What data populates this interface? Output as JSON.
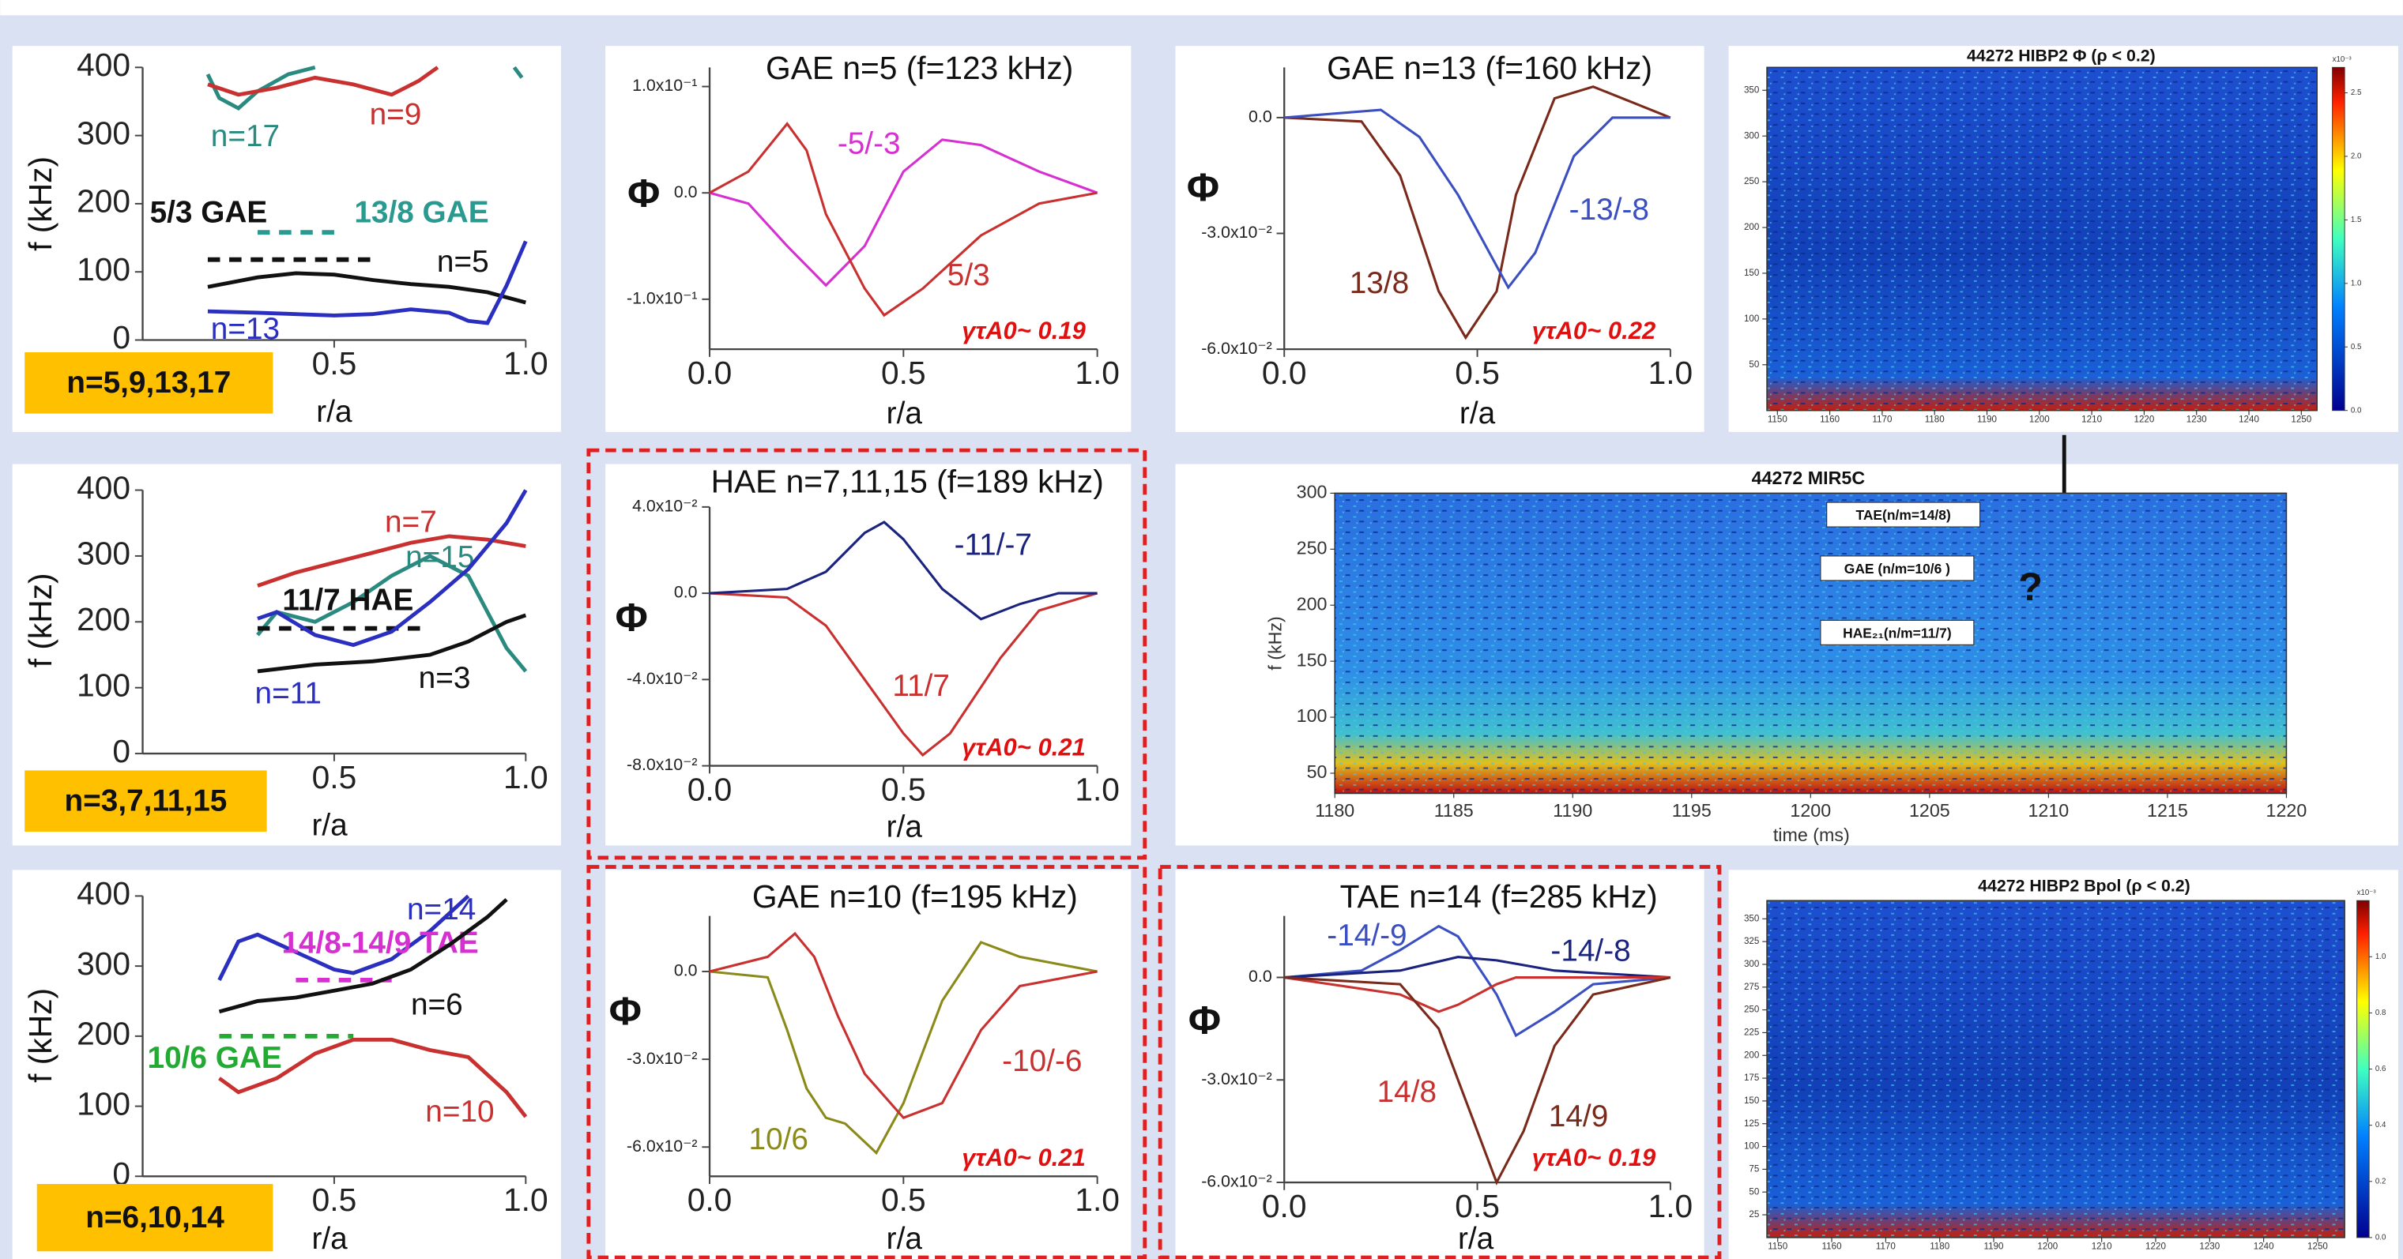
{
  "chart_data": [
    {
      "type": "line",
      "xlabel": "r/a",
      "ylabel": "f (kHz)",
      "annotation": "n=5,9,13,17",
      "xlim": [
        0,
        1
      ],
      "xticks": [
        0.5,
        {
          "value": 1,
          "label": "1.0"
        }
      ],
      "ylim": [
        0,
        400
      ],
      "yticks": [
        0,
        100,
        200,
        300,
        400
      ],
      "series": [
        {
          "name": "n=17",
          "color": "#2a8a80",
          "x": [
            0.17,
            0.2,
            0.25,
            0.3,
            0.38,
            0.45,
            0.5,
            0.97,
            0.99
          ],
          "values": [
            390,
            355,
            340,
            365,
            390,
            400,
            null,
            400,
            385
          ]
        },
        {
          "name": "n=9",
          "color": "#c8312f",
          "x": [
            0.17,
            0.25,
            0.35,
            0.45,
            0.55,
            0.65,
            0.72,
            0.77
          ],
          "values": [
            375,
            360,
            370,
            385,
            375,
            360,
            380,
            400
          ]
        },
        {
          "name": "n=5",
          "color": "#111111",
          "x": [
            0.17,
            0.3,
            0.4,
            0.5,
            0.6,
            0.7,
            0.8,
            0.9,
            1.0
          ],
          "values": [
            78,
            92,
            98,
            96,
            88,
            82,
            78,
            70,
            55
          ]
        },
        {
          "name": "n=13",
          "color": "#2b2fbf",
          "x": [
            0.17,
            0.3,
            0.4,
            0.5,
            0.6,
            0.7,
            0.8,
            0.85,
            0.9,
            0.95,
            1.0
          ],
          "values": [
            42,
            40,
            38,
            36,
            38,
            45,
            40,
            28,
            25,
            80,
            145
          ]
        },
        {
          "name": "5/3 GAE",
          "color": "#111111",
          "dashed": true,
          "x": [
            0.17,
            0.6
          ],
          "values": [
            118,
            118
          ]
        },
        {
          "name": "13/8 GAE",
          "color": "#2a9a90",
          "dashed": true,
          "x": [
            0.3,
            0.52
          ],
          "values": [
            158,
            158
          ]
        }
      ]
    },
    {
      "type": "line",
      "title": "GAE n=5 (f=123 kHz)",
      "xlabel": "r/a",
      "ylabel": "Φ",
      "growth_rate": "γτA0~ 0.19",
      "xlim": [
        0,
        1
      ],
      "xticks": [
        {
          "value": 0,
          "label": "0.0"
        },
        0.5,
        {
          "value": 1,
          "label": "1.0"
        }
      ],
      "ylim": [
        -0.147,
        0.118
      ],
      "yticks": [
        {
          "value": 0.1,
          "label": "1.0x10⁻¹"
        },
        {
          "value": 0,
          "label": "0.0"
        },
        {
          "value": -0.1,
          "label": "-1.0x10⁻¹"
        }
      ],
      "series": [
        {
          "name": "-5/-3",
          "color": "#d630d0",
          "x": [
            0,
            0.1,
            0.2,
            0.3,
            0.4,
            0.5,
            0.6,
            0.7,
            0.85,
            1
          ],
          "values": [
            0,
            -0.01,
            -0.05,
            -0.087,
            -0.05,
            0.02,
            0.05,
            0.045,
            0.02,
            0
          ]
        },
        {
          "name": "5/3",
          "color": "#c8312f",
          "x": [
            0,
            0.1,
            0.2,
            0.25,
            0.3,
            0.4,
            0.45,
            0.55,
            0.7,
            0.85,
            1
          ],
          "values": [
            0,
            0.02,
            0.065,
            0.04,
            -0.02,
            -0.09,
            -0.115,
            -0.09,
            -0.04,
            -0.01,
            0
          ]
        }
      ]
    },
    {
      "type": "line",
      "title": "GAE n=13 (f=160 kHz)",
      "xlabel": "r/a",
      "ylabel": "Φ",
      "growth_rate": "γτA0~ 0.22",
      "xlim": [
        0,
        1
      ],
      "xticks": [
        {
          "value": 0,
          "label": "0.0"
        },
        0.5,
        {
          "value": 1,
          "label": "1.0"
        }
      ],
      "ylim": [
        -0.06,
        0.013
      ],
      "yticks": [
        {
          "value": 0,
          "label": "0.0"
        },
        {
          "value": -0.03,
          "label": "-3.0x10⁻²"
        },
        {
          "value": -0.06,
          "label": "-6.0x10⁻²"
        }
      ],
      "series": [
        {
          "name": "13/8",
          "color": "#7a2a1a",
          "x": [
            0,
            0.2,
            0.3,
            0.4,
            0.47,
            0.55,
            0.6,
            0.7,
            0.8,
            0.9,
            1
          ],
          "values": [
            0,
            -0.001,
            -0.015,
            -0.045,
            -0.057,
            -0.045,
            -0.02,
            0.005,
            0.008,
            0.004,
            0
          ]
        },
        {
          "name": "-13/-8",
          "color": "#3b4fc0",
          "x": [
            0,
            0.25,
            0.35,
            0.45,
            0.58,
            0.65,
            0.75,
            0.85,
            1
          ],
          "values": [
            0,
            0.002,
            -0.005,
            -0.02,
            -0.044,
            -0.035,
            -0.01,
            0,
            0
          ]
        }
      ]
    },
    {
      "type": "heatmap",
      "title": "44272 HIBP2 Φ (ρ < 0.2)",
      "colorbar_label": "x10⁻³",
      "xlim": [
        1148,
        1253
      ],
      "xticks": [
        1150,
        1160,
        1170,
        1180,
        1190,
        1200,
        1210,
        1220,
        1230,
        1240,
        1250
      ],
      "ylim": [
        0,
        375
      ],
      "yticks": [
        50,
        100,
        150,
        200,
        250,
        300,
        350
      ],
      "clim": [
        0,
        2.7
      ],
      "cticks": [
        {
          "value": 0,
          "label": "0.0"
        },
        0.5,
        {
          "value": 1,
          "label": "1.0"
        },
        1.5,
        {
          "value": 2,
          "label": "2.0"
        },
        2.5
      ]
    },
    {
      "type": "line",
      "xlabel": "r/a",
      "ylabel": "f (kHz)",
      "annotation": "n=3,7,11,15",
      "xlim": [
        0,
        1
      ],
      "xticks": [
        0.5,
        {
          "value": 1,
          "label": "1.0"
        }
      ],
      "ylim": [
        0,
        400
      ],
      "yticks": [
        0,
        100,
        200,
        300,
        400
      ],
      "series": [
        {
          "name": "n=7",
          "color": "#c8312f",
          "x": [
            0.3,
            0.4,
            0.5,
            0.6,
            0.7,
            0.8,
            0.9,
            1.0
          ],
          "values": [
            255,
            275,
            290,
            305,
            320,
            330,
            325,
            315
          ]
        },
        {
          "name": "n=15",
          "color": "#2a8a80",
          "x": [
            0.3,
            0.35,
            0.45,
            0.55,
            0.65,
            0.75,
            0.85,
            0.95,
            1.0
          ],
          "values": [
            180,
            215,
            200,
            230,
            270,
            300,
            270,
            160,
            125
          ]
        },
        {
          "name": "11/7 HAE",
          "color": "#111111",
          "dashed": true,
          "x": [
            0.3,
            0.73
          ],
          "values": [
            190,
            190
          ]
        },
        {
          "name": "n=11",
          "color": "#2b2fbf",
          "x": [
            0.3,
            0.35,
            0.45,
            0.55,
            0.65,
            0.75,
            0.85,
            0.95,
            1.0
          ],
          "values": [
            205,
            215,
            180,
            165,
            185,
            230,
            280,
            350,
            400
          ]
        },
        {
          "name": "n=3",
          "color": "#111111",
          "x": [
            0.3,
            0.45,
            0.6,
            0.75,
            0.85,
            0.95,
            1.0
          ],
          "values": [
            125,
            135,
            140,
            150,
            170,
            200,
            210
          ]
        }
      ]
    },
    {
      "type": "line",
      "title": "HAE n=7,11,15 (f=189 kHz)",
      "xlabel": "r/a",
      "ylabel": "Φ",
      "growth_rate": "γτA0~ 0.21",
      "xlim": [
        0,
        1
      ],
      "xticks": [
        {
          "value": 0,
          "label": "0.0"
        },
        0.5,
        {
          "value": 1,
          "label": "1.0"
        }
      ],
      "ylim": [
        -0.08,
        0.04
      ],
      "yticks": [
        {
          "value": 0.04,
          "label": "4.0x10⁻²"
        },
        {
          "value": 0,
          "label": "0.0"
        },
        {
          "value": -0.04,
          "label": "-4.0x10⁻²"
        },
        {
          "value": -0.08,
          "label": "-8.0x10⁻²"
        }
      ],
      "series": [
        {
          "name": "11/7",
          "color": "#c8312f",
          "x": [
            0,
            0.2,
            0.3,
            0.4,
            0.5,
            0.55,
            0.62,
            0.75,
            0.85,
            1
          ],
          "values": [
            0,
            -0.002,
            -0.015,
            -0.04,
            -0.065,
            -0.075,
            -0.065,
            -0.03,
            -0.008,
            0
          ]
        },
        {
          "name": "-11/-7",
          "color": "#1a237e",
          "x": [
            0,
            0.2,
            0.3,
            0.4,
            0.45,
            0.5,
            0.6,
            0.7,
            0.8,
            0.9,
            1
          ],
          "values": [
            0,
            0.002,
            0.01,
            0.028,
            0.033,
            0.025,
            0.002,
            -0.012,
            -0.005,
            0,
            0
          ]
        }
      ]
    },
    {
      "type": "heatmap",
      "title": "44272 MIR5C",
      "xlabel": "time (ms)",
      "ylabel": "f (kHz)",
      "xlim": [
        1180,
        1220
      ],
      "xticks": [
        1180,
        1185,
        1190,
        1195,
        1200,
        1205,
        1210,
        1215,
        1220
      ],
      "ylim": [
        32,
        300
      ],
      "yticks": [
        50,
        100,
        150,
        200,
        250,
        300
      ],
      "annotations": [
        "TAE(n/m=14/8)",
        "GAE (n/m=10/6 )",
        "HAE₂₁(n/m=11/7)",
        "?"
      ]
    },
    {
      "type": "line",
      "xlabel": "r/a",
      "ylabel": "f (kHz)",
      "annotation": "n=6,10,14",
      "xlim": [
        0,
        1
      ],
      "xticks": [
        0.5,
        {
          "value": 1,
          "label": "1.0"
        }
      ],
      "ylim": [
        0,
        400
      ],
      "yticks": [
        0,
        100,
        200,
        300,
        400
      ],
      "series": [
        {
          "name": "n=14",
          "color": "#2b2fbf",
          "x": [
            0.2,
            0.25,
            0.3,
            0.4,
            0.5,
            0.55,
            0.65,
            0.75,
            0.85
          ],
          "values": [
            280,
            335,
            345,
            320,
            295,
            290,
            310,
            350,
            400
          ]
        },
        {
          "name": "14/8-14/9 TAE",
          "color": "#d630d0",
          "dashed": true,
          "x": [
            0.4,
            0.65
          ],
          "values": [
            280,
            280
          ]
        },
        {
          "name": "n=6",
          "color": "#111111",
          "x": [
            0.2,
            0.3,
            0.4,
            0.5,
            0.6,
            0.7,
            0.8,
            0.9,
            0.95
          ],
          "values": [
            235,
            250,
            255,
            265,
            275,
            295,
            330,
            370,
            395
          ]
        },
        {
          "name": "10/6 GAE",
          "color": "#22aa33",
          "dashed": true,
          "x": [
            0.2,
            0.55
          ],
          "values": [
            200,
            200
          ]
        },
        {
          "name": "n=10",
          "color": "#c8312f",
          "x": [
            0.2,
            0.25,
            0.35,
            0.45,
            0.55,
            0.65,
            0.75,
            0.85,
            0.95,
            1.0
          ],
          "values": [
            140,
            120,
            140,
            175,
            195,
            195,
            180,
            170,
            120,
            85
          ]
        }
      ]
    },
    {
      "type": "line",
      "title": "GAE n=10 (f=195 kHz)",
      "xlabel": "r/a",
      "ylabel": "Φ",
      "growth_rate": "γτA0~ 0.21",
      "xlim": [
        0,
        1
      ],
      "xticks": [
        {
          "value": 0,
          "label": "0.0"
        },
        0.5,
        {
          "value": 1,
          "label": "1.0"
        }
      ],
      "ylim": [
        -0.07,
        0.019
      ],
      "yticks": [
        {
          "value": 0,
          "label": "0.0"
        },
        {
          "value": -0.03,
          "label": "-3.0x10⁻²"
        },
        {
          "value": -0.06,
          "label": "-6.0x10⁻²"
        }
      ],
      "series": [
        {
          "name": "10/6",
          "color": "#8a8a1a",
          "x": [
            0,
            0.15,
            0.2,
            0.25,
            0.3,
            0.35,
            0.43,
            0.5,
            0.6,
            0.7,
            0.8,
            1
          ],
          "values": [
            0,
            -0.002,
            -0.02,
            -0.04,
            -0.05,
            -0.052,
            -0.062,
            -0.045,
            -0.01,
            0.01,
            0.005,
            0
          ]
        },
        {
          "name": "-10/-6",
          "color": "#c8312f",
          "x": [
            0,
            0.15,
            0.22,
            0.27,
            0.33,
            0.4,
            0.5,
            0.6,
            0.7,
            0.8,
            1
          ],
          "values": [
            0,
            0.005,
            0.013,
            0.005,
            -0.015,
            -0.035,
            -0.05,
            -0.045,
            -0.02,
            -0.005,
            0
          ]
        }
      ]
    },
    {
      "type": "line",
      "title": "TAE n=14 (f=285 kHz)",
      "xlabel": "r/a",
      "ylabel": "Φ",
      "growth_rate": "γτA0~ 0.19",
      "xlim": [
        0,
        1
      ],
      "xticks": [
        {
          "value": 0,
          "label": "0.0"
        },
        0.5,
        {
          "value": 1,
          "label": "1.0"
        }
      ],
      "ylim": [
        -0.06,
        0.018
      ],
      "yticks": [
        {
          "value": 0,
          "label": "0.0"
        },
        {
          "value": -0.03,
          "label": "-3.0x10⁻²"
        },
        {
          "value": -0.06,
          "label": "-6.0x10⁻²"
        }
      ],
      "series": [
        {
          "name": "-14/-9",
          "color": "#3b4fc0",
          "x": [
            0,
            0.2,
            0.3,
            0.4,
            0.45,
            0.55,
            0.6,
            0.7,
            0.8,
            1
          ],
          "values": [
            0,
            0.002,
            0.008,
            0.015,
            0.012,
            -0.005,
            -0.017,
            -0.01,
            -0.002,
            0
          ]
        },
        {
          "name": "-14/-8",
          "color": "#1a237e",
          "x": [
            0,
            0.3,
            0.45,
            0.55,
            0.7,
            1
          ],
          "values": [
            0,
            0.002,
            0.006,
            0.005,
            0.002,
            0
          ]
        },
        {
          "name": "14/8",
          "color": "#c8312f",
          "x": [
            0,
            0.3,
            0.4,
            0.45,
            0.55,
            0.6,
            1
          ],
          "values": [
            0,
            -0.005,
            -0.01,
            -0.008,
            -0.002,
            0,
            0
          ]
        },
        {
          "name": "14/9",
          "color": "#7a2a1a",
          "x": [
            0,
            0.3,
            0.4,
            0.5,
            0.55,
            0.62,
            0.7,
            0.8,
            1
          ],
          "values": [
            0,
            -0.002,
            -0.015,
            -0.045,
            -0.06,
            -0.045,
            -0.02,
            -0.005,
            0
          ]
        }
      ]
    },
    {
      "type": "heatmap",
      "title": "44272 HIBP2 Bpol (ρ < 0.2)",
      "colorbar_label": "x10⁻³",
      "xlim": [
        1148,
        1255
      ],
      "xticks": [
        1150,
        1160,
        1170,
        1180,
        1190,
        1200,
        1210,
        1220,
        1230,
        1240,
        1250
      ],
      "ylim": [
        0,
        370
      ],
      "yticks": [
        25,
        50,
        75,
        100,
        125,
        150,
        175,
        200,
        225,
        250,
        275,
        300,
        325,
        350
      ],
      "clim": [
        0,
        1.2
      ],
      "cticks": [
        {
          "value": 0,
          "label": "0.0"
        },
        0.2,
        0.4,
        0.6,
        0.8,
        {
          "value": 1,
          "label": "1.0"
        }
      ]
    }
  ]
}
